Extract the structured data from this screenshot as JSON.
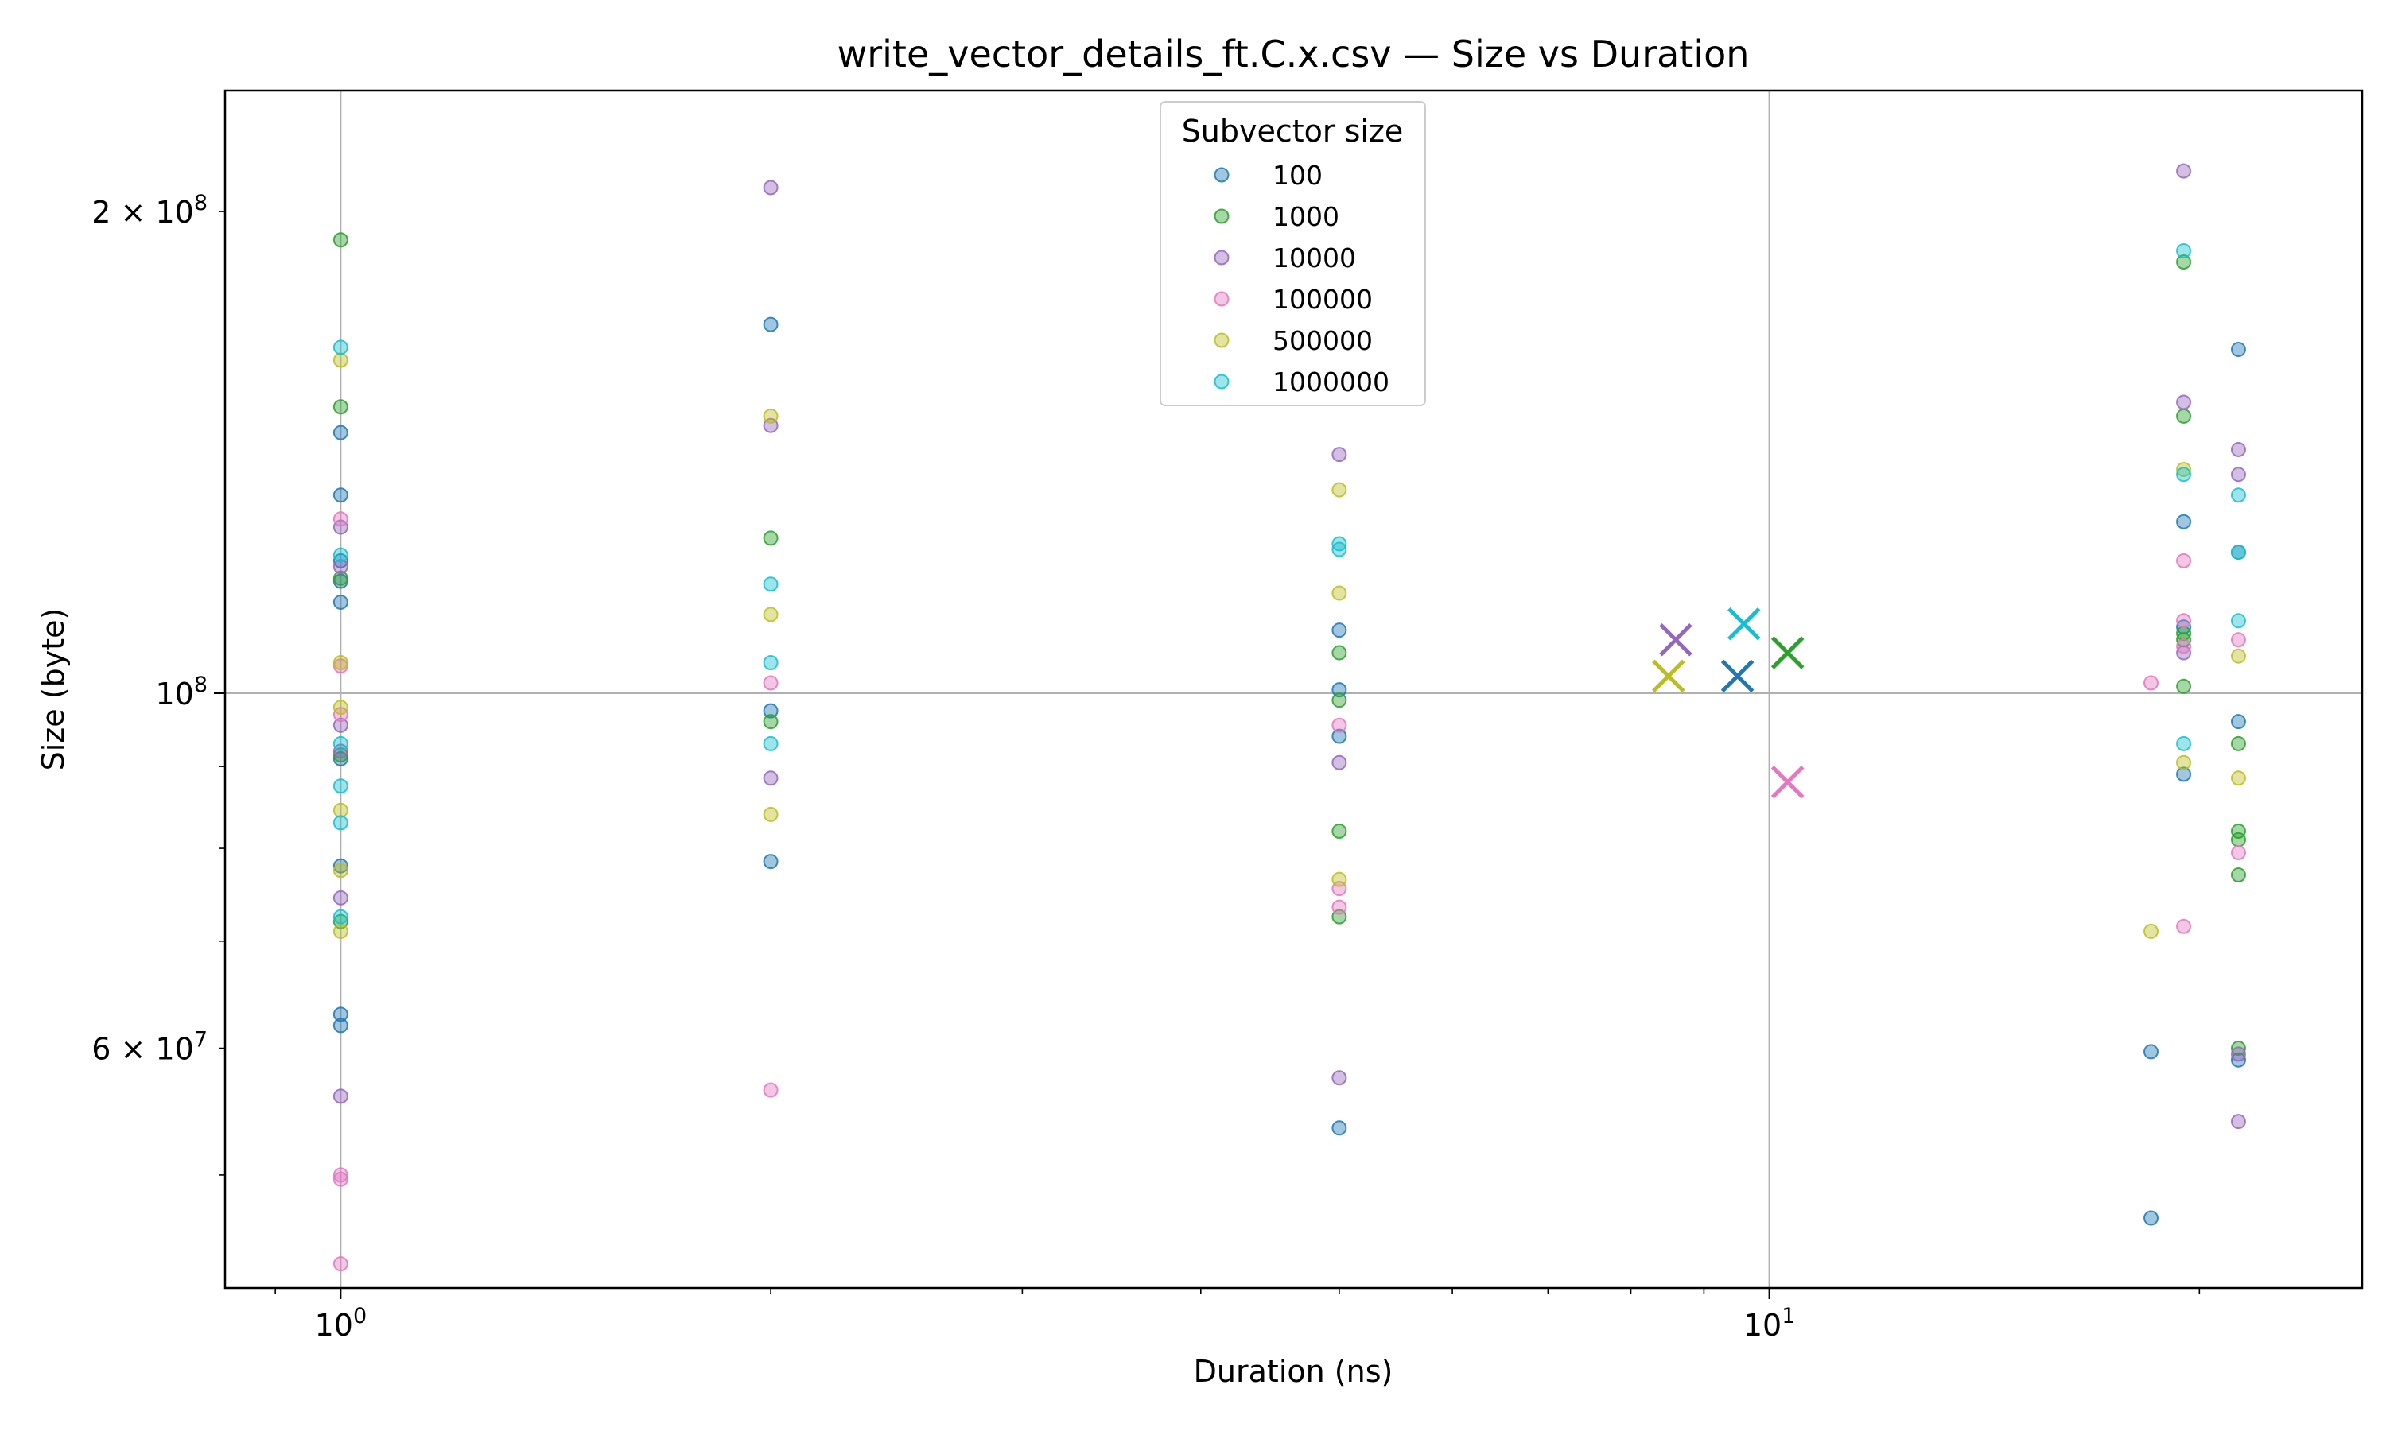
{
  "chart_data": {
    "type": "scatter",
    "title": "write_vector_details_ft.C.x.csv — Size vs Duration",
    "xlabel": "Duration (ns)",
    "ylabel": "Size (byte)",
    "xscale": "log",
    "yscale": "log",
    "xlim": [
      0.83,
      26
    ],
    "ylim": [
      42500000,
      238000000
    ],
    "grid": "major only",
    "legend": {
      "title": "Subvector size",
      "placement": "top-center"
    },
    "x_ticks": [
      {
        "value": 1,
        "base": "10",
        "exp": "0"
      },
      {
        "value": 10,
        "base": "10",
        "exp": "1"
      }
    ],
    "y_ticks": [
      {
        "value": 60000000,
        "mant": "6 × 10",
        "exp": "7"
      },
      {
        "value": 100000000,
        "mant": "10",
        "exp": "8"
      },
      {
        "value": 200000000,
        "mant": "2 × 10",
        "exp": "8"
      }
    ],
    "series": [
      {
        "name": "100",
        "color": "#1f77b4",
        "x": [
          1,
          1,
          1,
          1,
          1,
          1,
          1,
          1,
          1,
          2,
          2,
          2,
          5,
          5,
          5,
          5,
          18.5,
          18.5,
          19.5,
          19.5,
          19.5,
          21.3,
          21.3,
          21.3,
          21.3
        ],
        "y": [
          145500000,
          133000000,
          121000000,
          114000000,
          91000000,
          78000000,
          63000000,
          62000000,
          117500000,
          170000000,
          97500000,
          78500000,
          109500000,
          100500000,
          94000000,
          53500000,
          59700000,
          47000000,
          128000000,
          89000000,
          110000000,
          164000000,
          96000000,
          59000000,
          122500000
        ]
      },
      {
        "name": "1000",
        "color": "#2ca02c",
        "x": [
          1,
          1,
          1,
          1,
          1,
          2,
          2,
          5,
          5,
          5,
          5,
          19.5,
          19.5,
          19.5,
          19.5,
          19.5,
          21.3,
          21.3,
          21.3,
          21.3,
          21.3
        ],
        "y": [
          192000000,
          151000000,
          118000000,
          72000000,
          91500000,
          125000000,
          96000000,
          106000000,
          99000000,
          82000000,
          72500000,
          186000000,
          149000000,
          109000000,
          101000000,
          108000000,
          93000000,
          82000000,
          81000000,
          77000000,
          60000000
        ]
      },
      {
        "name": "10000",
        "color": "#9467bd",
        "x": [
          1,
          1,
          1,
          1,
          1,
          1,
          2,
          2,
          2,
          5,
          5,
          5,
          19.5,
          19.5,
          19.5,
          21.3,
          21.3,
          21.3,
          21.3
        ],
        "y": [
          127000000,
          120000000,
          95500000,
          74500000,
          56000000,
          92000000,
          207000000,
          147000000,
          88500000,
          141000000,
          90500000,
          57500000,
          212000000,
          152000000,
          106000000,
          142000000,
          137000000,
          54000000,
          59500000
        ]
      },
      {
        "name": "100000",
        "color": "#e377c2",
        "x": [
          1,
          1,
          1,
          1,
          1,
          1,
          2,
          2,
          5,
          5,
          5,
          18.5,
          19.5,
          19.5,
          19.5,
          19.5,
          21.3,
          21.3
        ],
        "y": [
          128500000,
          104000000,
          97000000,
          50000000,
          49700000,
          44000000,
          101500000,
          56500000,
          95500000,
          75500000,
          73500000,
          101500000,
          121000000,
          111000000,
          71500000,
          107000000,
          108000000,
          79500000
        ]
      },
      {
        "name": "500000",
        "color": "#bcbd22",
        "x": [
          1,
          1,
          1,
          1,
          1,
          1,
          2,
          2,
          2,
          5,
          5,
          5,
          18.5,
          19.5,
          19.5,
          21.3,
          21.3
        ],
        "y": [
          161500000,
          104500000,
          98000000,
          84500000,
          77500000,
          71000000,
          149000000,
          112000000,
          84000000,
          134000000,
          115500000,
          76500000,
          71000000,
          138000000,
          90500000,
          105500000,
          88500000
        ]
      },
      {
        "name": "1000000",
        "color": "#17becf",
        "x": [
          1,
          1,
          1,
          1,
          1,
          1,
          2,
          2,
          2,
          5,
          5,
          19.5,
          19.5,
          19.5,
          21.3,
          21.3,
          21.3
        ],
        "y": [
          164500000,
          122000000,
          93000000,
          87500000,
          83000000,
          72500000,
          117000000,
          104500000,
          93000000,
          124000000,
          123000000,
          189000000,
          137000000,
          93000000,
          133000000,
          122500000,
          111000000
        ]
      }
    ],
    "summary_markers": [
      {
        "series": "100",
        "color": "#1f77b4",
        "x": 9.5,
        "y": 102500000
      },
      {
        "series": "1000",
        "color": "#2ca02c",
        "x": 10.3,
        "y": 106000000
      },
      {
        "series": "10000",
        "color": "#9467bd",
        "x": 8.6,
        "y": 108000000
      },
      {
        "series": "100000",
        "color": "#e377c2",
        "x": 10.3,
        "y": 88000000
      },
      {
        "series": "500000",
        "color": "#bcbd22",
        "x": 8.5,
        "y": 102500000
      },
      {
        "series": "1000000",
        "color": "#17becf",
        "x": 9.6,
        "y": 110500000
      }
    ]
  }
}
